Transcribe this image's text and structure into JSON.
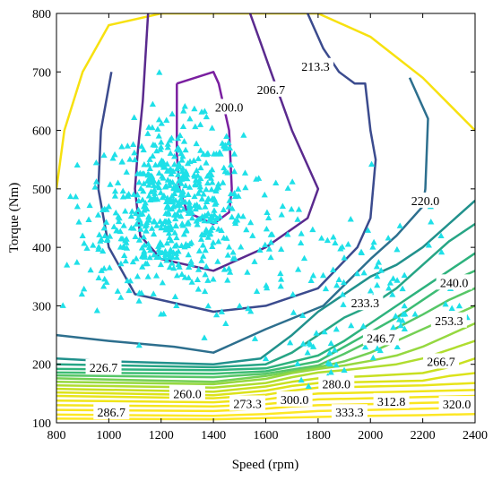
{
  "chart_data": {
    "type": "contour",
    "xlabel": "Speed (rpm)",
    "ylabel": "Torque (Nm)",
    "xlim": [
      800,
      2400
    ],
    "ylim": [
      100,
      800
    ],
    "xticks": [
      800,
      1000,
      1200,
      1400,
      1600,
      1800,
      2000,
      2200,
      2400
    ],
    "yticks": [
      100,
      200,
      300,
      400,
      500,
      600,
      700,
      800
    ],
    "grid": false,
    "legend": "none",
    "envelope": {
      "color": "#f7e10f",
      "points": [
        [
          800,
          500
        ],
        [
          830,
          600
        ],
        [
          900,
          700
        ],
        [
          1000,
          780
        ],
        [
          1200,
          800
        ],
        [
          1800,
          800
        ],
        [
          2000,
          760
        ],
        [
          2200,
          690
        ],
        [
          2400,
          600
        ]
      ]
    },
    "contours": [
      {
        "label": "200.0",
        "color": "#7a1fa0",
        "label_at": [
          1460,
          640
        ],
        "points": [
          [
            1260,
            680
          ],
          [
            1400,
            700
          ],
          [
            1420,
            680
          ],
          [
            1460,
            600
          ],
          [
            1470,
            500
          ],
          [
            1460,
            460
          ],
          [
            1400,
            440
          ],
          [
            1300,
            460
          ],
          [
            1270,
            500
          ],
          [
            1260,
            560
          ],
          [
            1260,
            680
          ]
        ]
      },
      {
        "label": "206.7",
        "color": "#5a2a8e",
        "label_at": [
          1620,
          670
        ],
        "points": [
          [
            1540,
            800
          ],
          [
            1580,
            750
          ],
          [
            1620,
            700
          ],
          [
            1700,
            600
          ],
          [
            1800,
            500
          ],
          [
            1760,
            450
          ],
          [
            1600,
            400
          ],
          [
            1400,
            360
          ],
          [
            1200,
            380
          ],
          [
            1120,
            420
          ],
          [
            1100,
            500
          ],
          [
            1110,
            560
          ],
          [
            1130,
            650
          ],
          [
            1150,
            800
          ]
        ]
      },
      {
        "label": "213.3",
        "color": "#3b4b8e",
        "label_at": [
          1790,
          710
        ],
        "points": [
          [
            1760,
            800
          ],
          [
            1820,
            740
          ],
          [
            1880,
            700
          ],
          [
            1940,
            680
          ],
          [
            1980,
            680
          ],
          [
            2000,
            600
          ],
          [
            2020,
            550
          ],
          [
            2000,
            450
          ],
          [
            1950,
            400
          ],
          [
            1800,
            330
          ],
          [
            1600,
            300
          ],
          [
            1400,
            290
          ],
          [
            1100,
            320
          ],
          [
            1000,
            400
          ],
          [
            960,
            500
          ],
          [
            970,
            600
          ],
          [
            1010,
            700
          ]
        ]
      },
      {
        "label": "220.0",
        "color": "#2d6f8e",
        "label_at": [
          2210,
          480
        ],
        "points": [
          [
            2150,
            690
          ],
          [
            2220,
            620
          ],
          [
            2210,
            500
          ],
          [
            2200,
            470
          ],
          [
            2100,
            420
          ],
          [
            2000,
            380
          ],
          [
            1820,
            300
          ],
          [
            1600,
            260
          ],
          [
            1400,
            220
          ],
          [
            1250,
            230
          ],
          [
            1000,
            240
          ],
          [
            800,
            250
          ]
        ]
      },
      {
        "label": "226.7",
        "color": "#21918c",
        "label_at": [
          980,
          195
        ],
        "points": [
          [
            800,
            210
          ],
          [
            1000,
            205
          ],
          [
            1400,
            200
          ],
          [
            1580,
            210
          ],
          [
            1700,
            250
          ],
          [
            1800,
            290
          ],
          [
            1900,
            320
          ],
          [
            2000,
            350
          ],
          [
            2100,
            370
          ],
          [
            2200,
            400
          ],
          [
            2300,
            440
          ],
          [
            2400,
            480
          ]
        ]
      },
      {
        "label": "233.3",
        "color": "#27a585",
        "label_at": [
          1980,
          305
        ],
        "points": [
          [
            800,
            200
          ],
          [
            1400,
            195
          ],
          [
            1600,
            200
          ],
          [
            1700,
            220
          ],
          [
            1800,
            250
          ],
          [
            1900,
            280
          ],
          [
            2000,
            300
          ],
          [
            2100,
            330
          ],
          [
            2200,
            370
          ],
          [
            2300,
            410
          ],
          [
            2400,
            440
          ]
        ]
      },
      {
        "label": "240.0",
        "color": "#2db27d",
        "label_at": [
          2320,
          340
        ],
        "points": [
          [
            800,
            192
          ],
          [
            1400,
            190
          ],
          [
            1600,
            193
          ],
          [
            1800,
            215
          ],
          [
            1900,
            240
          ],
          [
            2000,
            270
          ],
          [
            2100,
            300
          ],
          [
            2200,
            330
          ],
          [
            2300,
            360
          ],
          [
            2400,
            390
          ]
        ]
      },
      {
        "label": "246.7",
        "color": "#3dbc74",
        "label_at": [
          2040,
          245
        ],
        "points": [
          [
            800,
            186
          ],
          [
            1400,
            184
          ],
          [
            1600,
            188
          ],
          [
            1800,
            205
          ],
          [
            1900,
            230
          ],
          [
            2000,
            255
          ],
          [
            2100,
            280
          ],
          [
            2200,
            310
          ],
          [
            2300,
            340
          ],
          [
            2400,
            360
          ]
        ]
      },
      {
        "label": "253.3",
        "color": "#56c667",
        "label_at": [
          2300,
          275
        ],
        "points": [
          [
            800,
            181
          ],
          [
            1400,
            178
          ],
          [
            1600,
            184
          ],
          [
            1800,
            198
          ],
          [
            1900,
            218
          ],
          [
            2000,
            240
          ],
          [
            2100,
            262
          ],
          [
            2200,
            285
          ],
          [
            2300,
            310
          ],
          [
            2400,
            330
          ]
        ]
      },
      {
        "label": "260.0",
        "color": "#75d054",
        "label_at": [
          1300,
          150
        ],
        "points": [
          [
            800,
            176
          ],
          [
            1200,
            172
          ],
          [
            1400,
            170
          ],
          [
            1600,
            180
          ],
          [
            1800,
            195
          ],
          [
            1900,
            205
          ],
          [
            2000,
            220
          ],
          [
            2100,
            240
          ],
          [
            2200,
            260
          ],
          [
            2300,
            280
          ],
          [
            2400,
            300
          ]
        ]
      },
      {
        "label": "266.7",
        "color": "#95d840",
        "label_at": [
          2270,
          205
        ],
        "points": [
          [
            800,
            170
          ],
          [
            1400,
            166
          ],
          [
            1600,
            175
          ],
          [
            1700,
            185
          ],
          [
            1800,
            192
          ],
          [
            1900,
            198
          ],
          [
            2000,
            206
          ],
          [
            2100,
            215
          ],
          [
            2200,
            230
          ],
          [
            2300,
            250
          ],
          [
            2400,
            270
          ]
        ]
      },
      {
        "label": "273.3",
        "color": "#b0dd2f",
        "label_at": [
          1530,
          133
        ],
        "points": [
          [
            800,
            164
          ],
          [
            1400,
            160
          ],
          [
            1600,
            168
          ],
          [
            1700,
            178
          ],
          [
            1800,
            186
          ],
          [
            1900,
            190
          ],
          [
            2000,
            195
          ],
          [
            2100,
            200
          ],
          [
            2200,
            210
          ],
          [
            2300,
            225
          ],
          [
            2400,
            240
          ]
        ]
      },
      {
        "label": "280.0",
        "color": "#c8e020",
        "label_at": [
          1870,
          167
        ],
        "points": [
          [
            800,
            158
          ],
          [
            1400,
            153
          ],
          [
            1600,
            162
          ],
          [
            1700,
            170
          ],
          [
            1800,
            176
          ],
          [
            2000,
            180
          ],
          [
            2200,
            185
          ],
          [
            2300,
            195
          ],
          [
            2400,
            210
          ]
        ]
      },
      {
        "label": "286.7",
        "color": "#dce319",
        "label_at": [
          1010,
          118
        ],
        "points": [
          [
            800,
            152
          ],
          [
            1400,
            147
          ],
          [
            1600,
            155
          ],
          [
            1700,
            163
          ],
          [
            1800,
            168
          ],
          [
            2000,
            170
          ],
          [
            2200,
            172
          ],
          [
            2300,
            180
          ],
          [
            2400,
            185
          ]
        ]
      },
      {
        "label": "300.0",
        "color": "#e8e419",
        "label_at": [
          1710,
          140
        ],
        "points": [
          [
            800,
            146
          ],
          [
            1400,
            142
          ],
          [
            1600,
            148
          ],
          [
            1700,
            155
          ],
          [
            1800,
            160
          ],
          [
            2000,
            162
          ],
          [
            2200,
            164
          ],
          [
            2400,
            168
          ]
        ]
      },
      {
        "label": "312.8",
        "color": "#f0e51a",
        "label_at": [
          2080,
          137
        ],
        "points": [
          [
            800,
            138
          ],
          [
            1400,
            135
          ],
          [
            1600,
            140
          ],
          [
            1700,
            146
          ],
          [
            1800,
            150
          ],
          [
            2000,
            152
          ],
          [
            2200,
            154
          ],
          [
            2400,
            156
          ]
        ]
      },
      {
        "label": "320.0",
        "color": "#f5e51c",
        "label_at": [
          2330,
          132
        ],
        "points": [
          [
            800,
            130
          ],
          [
            1400,
            128
          ],
          [
            1600,
            132
          ],
          [
            1700,
            136
          ],
          [
            1800,
            140
          ],
          [
            2000,
            142
          ],
          [
            2200,
            144
          ],
          [
            2400,
            146
          ]
        ]
      },
      {
        "label": "333.3",
        "color": "#fae51f",
        "label_at": [
          1920,
          118
        ],
        "points": [
          [
            800,
            122
          ],
          [
            1400,
            120
          ],
          [
            1600,
            124
          ],
          [
            1700,
            128
          ],
          [
            1800,
            130
          ],
          [
            2000,
            132
          ],
          [
            2200,
            134
          ],
          [
            2400,
            136
          ]
        ]
      },
      {
        "color": "#fde725",
        "points": [
          [
            800,
            114
          ],
          [
            1400,
            112
          ],
          [
            1600,
            115
          ],
          [
            1800,
            120
          ],
          [
            2000,
            122
          ],
          [
            2200,
            124
          ],
          [
            2400,
            126
          ]
        ]
      },
      {
        "color": "#fde725",
        "points": [
          [
            800,
            107
          ],
          [
            1400,
            106
          ],
          [
            1600,
            108
          ],
          [
            1800,
            110
          ],
          [
            2000,
            112
          ],
          [
            2200,
            113
          ],
          [
            2400,
            115
          ]
        ]
      }
    ],
    "scatter": {
      "color": "#1ee0e8",
      "marker": "triangle",
      "clusters": [
        {
          "cx": 1250,
          "cy": 470,
          "sx": 130,
          "sy": 70,
          "n": 520
        },
        {
          "cx": 1600,
          "cy": 380,
          "sx": 200,
          "sy": 80,
          "n": 90
        },
        {
          "cx": 2050,
          "cy": 330,
          "sx": 150,
          "sy": 80,
          "n": 60
        },
        {
          "cx": 960,
          "cy": 400,
          "sx": 80,
          "sy": 60,
          "n": 40
        },
        {
          "cx": 1850,
          "cy": 210,
          "sx": 60,
          "sy": 25,
          "n": 12
        }
      ],
      "extra_points": [
        [
          1310,
          620
        ],
        [
          1450,
          590
        ],
        [
          1480,
          560
        ],
        [
          1200,
          580
        ],
        [
          1350,
          610
        ],
        [
          1100,
          550
        ],
        [
          1000,
          470
        ],
        [
          900,
          420
        ],
        [
          840,
          370
        ],
        [
          880,
          470
        ],
        [
          1150,
          350
        ],
        [
          1380,
          300
        ],
        [
          1500,
          300
        ],
        [
          1600,
          210
        ],
        [
          1900,
          190
        ],
        [
          2130,
          300
        ],
        [
          2230,
          470
        ],
        [
          2270,
          420
        ],
        [
          2340,
          300
        ],
        [
          1870,
          260
        ],
        [
          1760,
          220
        ]
      ]
    }
  }
}
